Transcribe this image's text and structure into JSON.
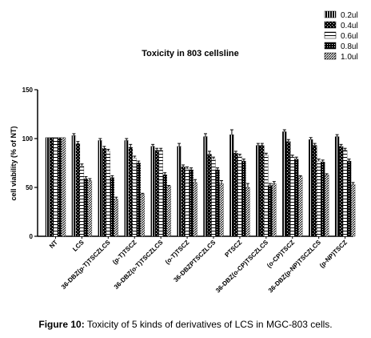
{
  "caption": {
    "prefix": "Figure 10:",
    "text": "Toxicity of 5 kinds of derivatives of LCS in MGC-803 cells."
  },
  "chart_data": {
    "type": "bar",
    "title": "Toxicity in 803 cellsline",
    "xlabel": "",
    "ylabel": "cell viability (% of NT)",
    "ylim": [
      0,
      150
    ],
    "yticks": [
      "0",
      "50",
      "100",
      "150"
    ],
    "grid": false,
    "legend_position": "top-right",
    "categories": [
      "NT",
      "LCS",
      "36-DBZ(p-T)TSCZLCS",
      "(p-T)TSCZ",
      "36-DBZ(o-T)TSCZLCS",
      "(o-T)TSCZ",
      "36-DBZPTSCZLCS",
      "PTSCZ",
      "36-DBZ(o-CP)TSCZLCS",
      "(o-CP)TSCZ",
      "36-DBZ(p-NP)TSCZLCS",
      "(p-NP)TSCZ"
    ],
    "series": [
      {
        "name": "0.2ul",
        "values": [
          101,
          103,
          98,
          98,
          92,
          92,
          102,
          104,
          93,
          107,
          99,
          102
        ],
        "errors": [
          0,
          2,
          2,
          2,
          2,
          3,
          3,
          5,
          2,
          2,
          2,
          2
        ]
      },
      {
        "name": "0.4ul",
        "values": [
          101,
          95,
          90,
          91,
          88,
          71,
          84,
          85,
          93,
          97,
          93,
          92
        ],
        "errors": [
          0,
          2,
          2,
          3,
          2,
          2,
          3,
          2,
          2,
          2,
          2,
          2
        ]
      },
      {
        "name": "0.6ul",
        "values": [
          101,
          72,
          87,
          80,
          88,
          69,
          79,
          82,
          83,
          81,
          77,
          88
        ],
        "errors": [
          0,
          2,
          2,
          2,
          2,
          2,
          2,
          2,
          2,
          2,
          2,
          2
        ]
      },
      {
        "name": "0.8ul",
        "values": [
          101,
          59,
          60,
          75,
          63,
          68,
          68,
          77,
          52,
          79,
          76,
          77
        ],
        "errors": [
          0,
          2,
          2,
          2,
          2,
          2,
          2,
          2,
          2,
          2,
          2,
          2
        ]
      },
      {
        "name": "1.0ul",
        "values": [
          101,
          57,
          38,
          43,
          51,
          55,
          54,
          50,
          54,
          61,
          63,
          53
        ],
        "errors": [
          0,
          2,
          2,
          1,
          1,
          3,
          3,
          4,
          2,
          1,
          1,
          2
        ]
      }
    ]
  }
}
